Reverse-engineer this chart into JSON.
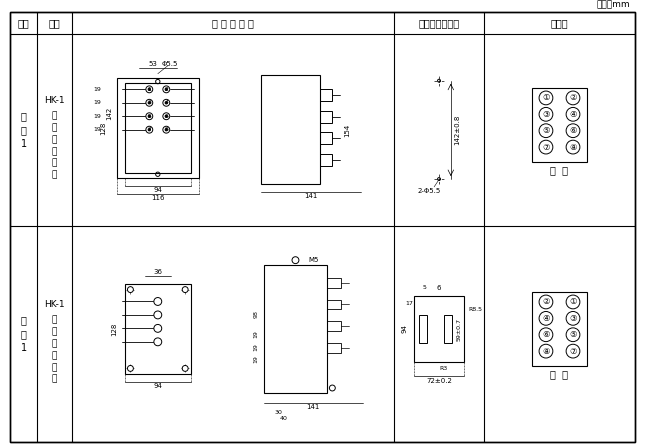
{
  "title_unit": "单位：mm",
  "col_headers": [
    "图号",
    "结构",
    "外 形 尺 寸 图",
    "安装开孔尺寸图",
    "端子图"
  ],
  "row1_label1": "附",
  "row1_label2": "图",
  "row1_label3": "1",
  "row1_struct_label": "HK-1",
  "row1_struct_desc": [
    "凸",
    "出",
    "式",
    "前",
    "接",
    "线"
  ],
  "row2_struct_label": "HK-1",
  "row2_struct_desc": [
    "凸",
    "出",
    "式",
    "后",
    "接",
    "线"
  ],
  "front_view_label": "前  视",
  "back_view_label": "背  视",
  "bg_color": "#ffffff",
  "line_color": "#000000",
  "dim_color": "#000000",
  "text_color": "#000000"
}
